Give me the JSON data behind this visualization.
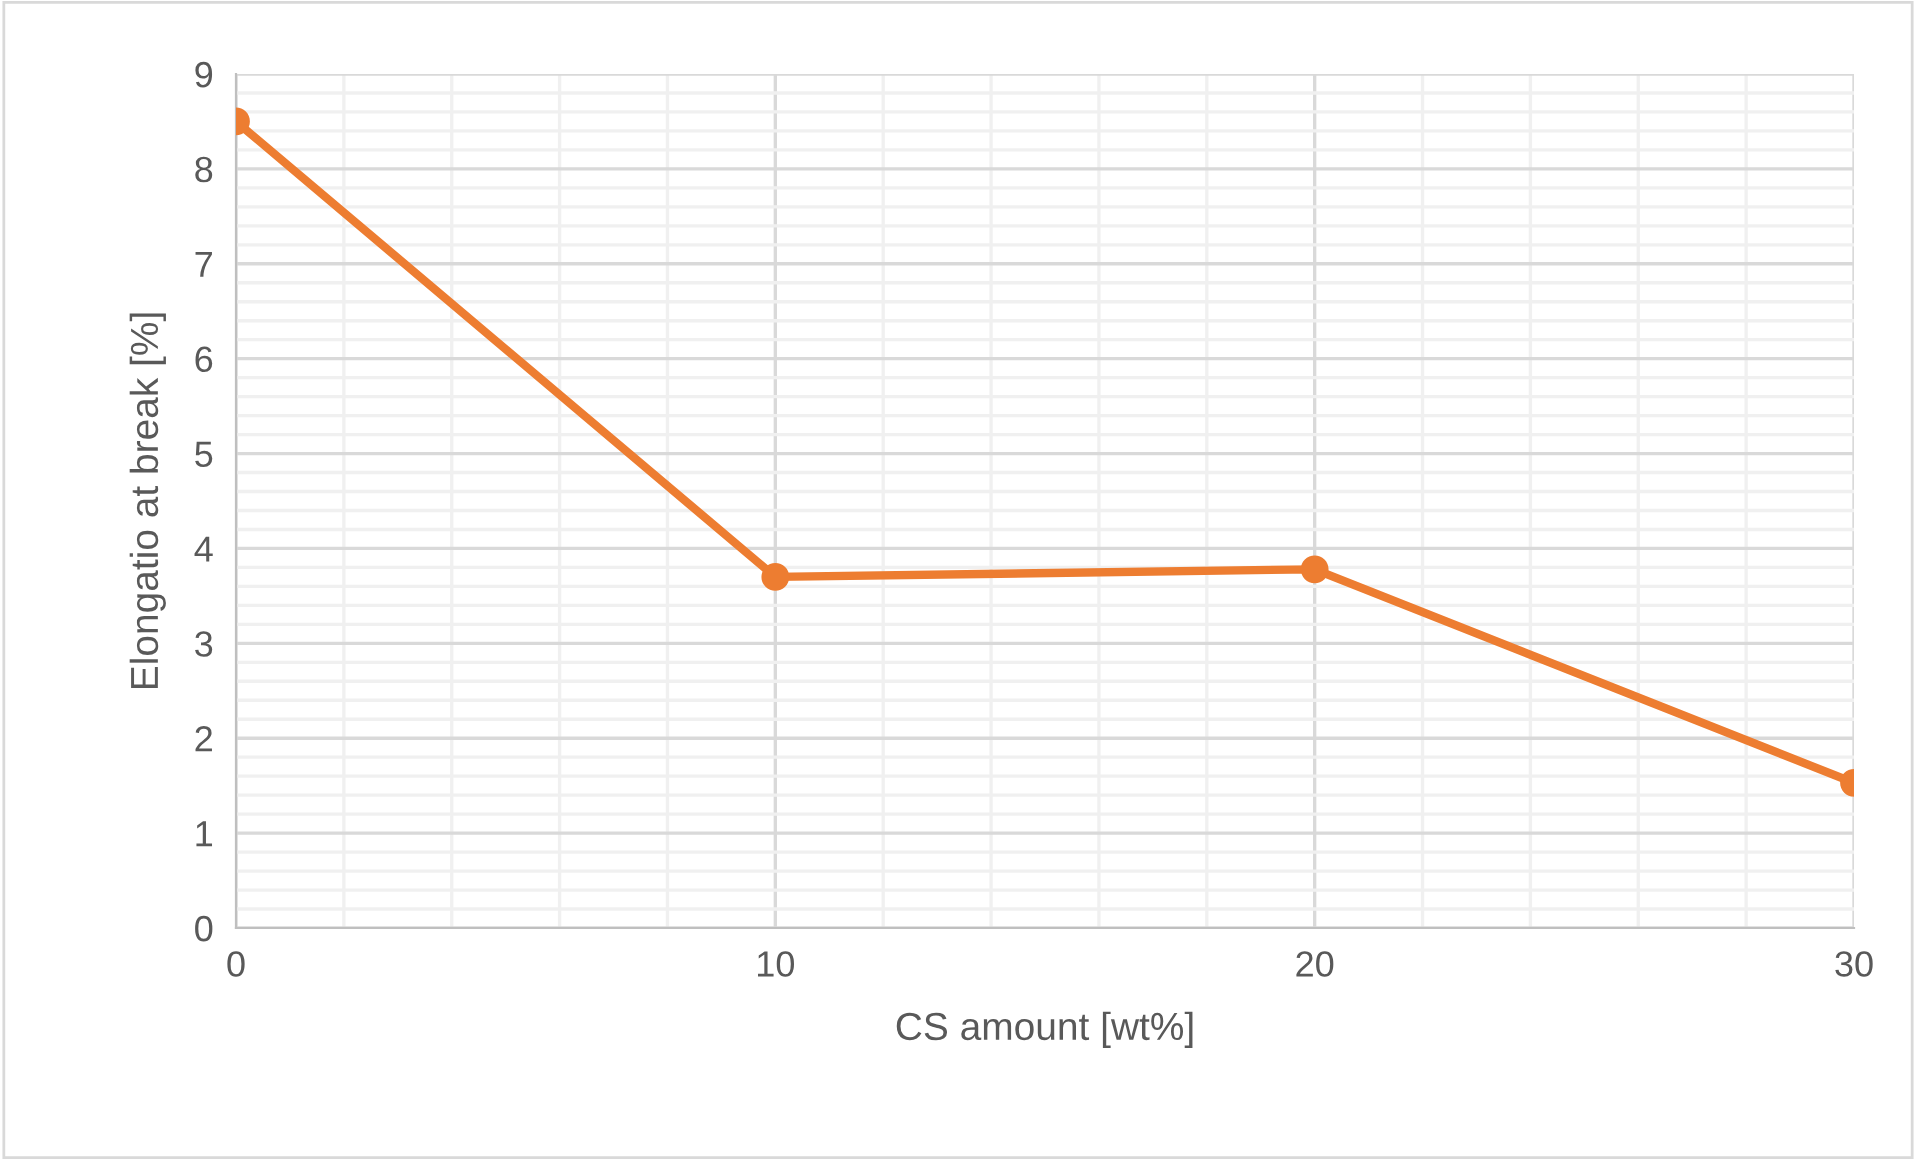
{
  "chart_data": {
    "type": "line",
    "xlabel": "CS amount [wt%]",
    "ylabel": "Elongatio at break [%]",
    "x": [
      0,
      10,
      20,
      30
    ],
    "series": [
      {
        "color": "#ed7d31",
        "values": [
          8.5,
          3.7,
          3.78,
          1.53
        ]
      }
    ],
    "xlim": [
      0,
      30
    ],
    "xticks": [
      0,
      10,
      20,
      30
    ],
    "ylim": [
      0,
      9
    ],
    "yticks": [
      0,
      1,
      2,
      3,
      4,
      5,
      6,
      7,
      8,
      9
    ],
    "grid": true,
    "marker": "circle",
    "line_style": "solid"
  }
}
